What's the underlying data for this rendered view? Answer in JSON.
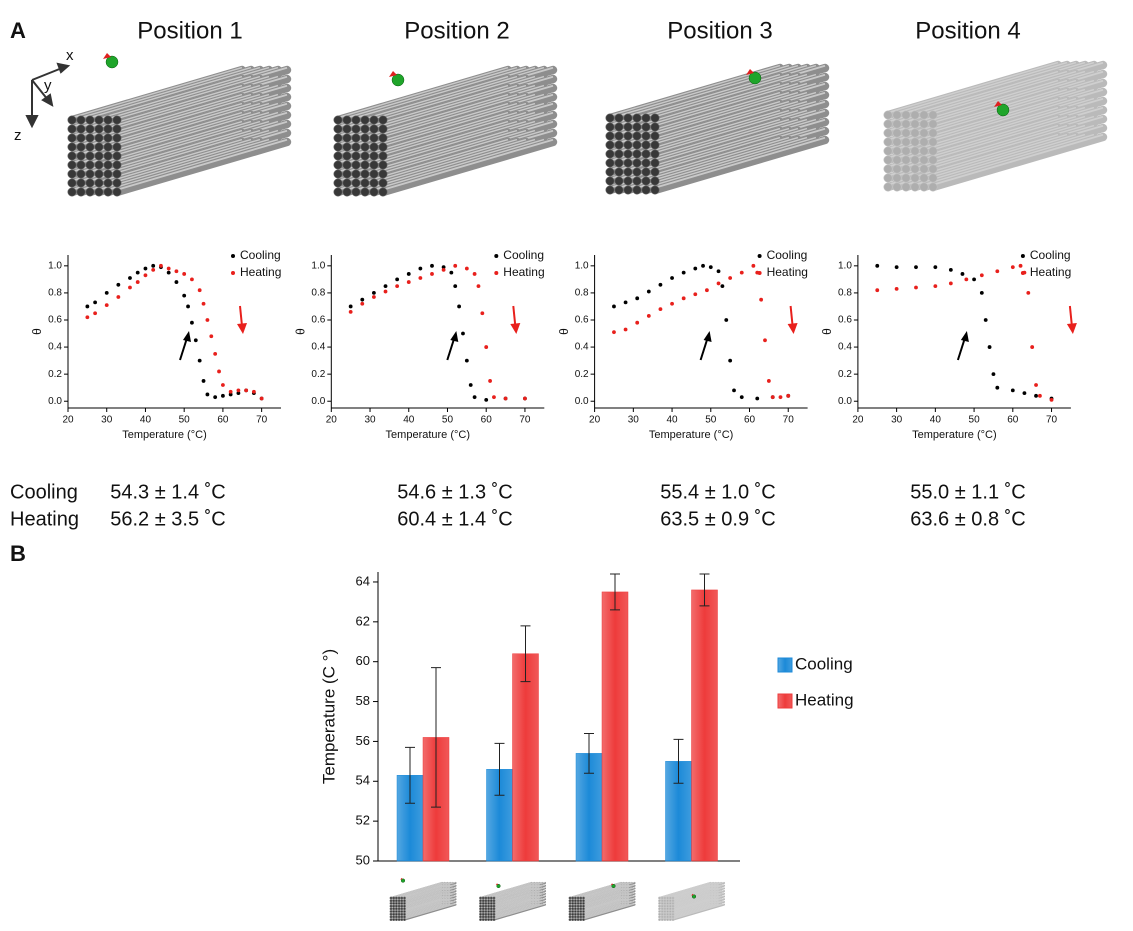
{
  "figure": {
    "panel_a": "A",
    "panel_b": "B",
    "axes": {
      "x": "x",
      "y": "y",
      "z": "z"
    },
    "positions": [
      "Position 1",
      "Position 2",
      "Position 3",
      "Position 4"
    ],
    "summary": {
      "labels": [
        "Cooling",
        "Heating"
      ],
      "values": [
        [
          "54.3 ± 1.4 ˚C",
          "56.2 ± 3.5 ˚C"
        ],
        [
          "54.6 ± 1.3 ˚C",
          "60.4 ± 1.4 ˚C"
        ],
        [
          "55.4 ± 1.0 ˚C",
          "63.5 ± 0.9 ˚C"
        ],
        [
          "55.0 ± 1.1 ˚C",
          "63.6 ± 0.8 ˚C"
        ]
      ]
    }
  },
  "chart_data": [
    {
      "type": "scatter",
      "xlabel": "Temperature (°C)",
      "ylabel": "θ",
      "xlim": [
        20,
        75
      ],
      "ylim": [
        -0.05,
        1.08
      ],
      "xticks": [
        20,
        30,
        40,
        50,
        60,
        70
      ],
      "yticks": [
        {
          "value": 0,
          "label": "0.0"
        },
        0.2,
        0.4,
        0.6,
        0.8,
        {
          "value": 1,
          "label": "1.0"
        }
      ],
      "legend": "upper right",
      "series": [
        {
          "name": "Cooling",
          "color": "#000000",
          "x": [
            25,
            27,
            30,
            33,
            36,
            38,
            40,
            42,
            44,
            46,
            48,
            50,
            51,
            52,
            53,
            54,
            55,
            56,
            58,
            60,
            62,
            64,
            66,
            68,
            70
          ],
          "values": [
            0.7,
            0.73,
            0.8,
            0.86,
            0.91,
            0.95,
            0.98,
            1.0,
            0.99,
            0.95,
            0.88,
            0.78,
            0.7,
            0.58,
            0.45,
            0.3,
            0.15,
            0.05,
            0.03,
            0.04,
            0.05,
            0.06,
            0.08,
            0.06,
            0.02
          ]
        },
        {
          "name": "Heating",
          "color": "#e8201c",
          "x": [
            25,
            27,
            30,
            33,
            36,
            38,
            40,
            42,
            44,
            46,
            48,
            50,
            52,
            54,
            55,
            56,
            57,
            58,
            59,
            60,
            62,
            64,
            66,
            68,
            70
          ],
          "values": [
            0.62,
            0.65,
            0.71,
            0.77,
            0.84,
            0.88,
            0.93,
            0.97,
            1.0,
            0.98,
            0.96,
            0.94,
            0.9,
            0.82,
            0.72,
            0.6,
            0.48,
            0.35,
            0.22,
            0.12,
            0.07,
            0.08,
            0.08,
            0.07,
            0.02
          ]
        }
      ]
    },
    {
      "type": "scatter",
      "xlabel": "Temperature (°C)",
      "ylabel": "θ",
      "xlim": [
        20,
        75
      ],
      "ylim": [
        -0.05,
        1.08
      ],
      "xticks": [
        20,
        30,
        40,
        50,
        60,
        70
      ],
      "yticks": [
        {
          "value": 0,
          "label": "0.0"
        },
        0.2,
        0.4,
        0.6,
        0.8,
        {
          "value": 1,
          "label": "1.0"
        }
      ],
      "legend": "upper right",
      "series": [
        {
          "name": "Cooling",
          "color": "#000000",
          "x": [
            25,
            28,
            31,
            34,
            37,
            40,
            43,
            46,
            49,
            51,
            52,
            53,
            54,
            55,
            56,
            57,
            60,
            65,
            70
          ],
          "values": [
            0.7,
            0.75,
            0.8,
            0.85,
            0.9,
            0.94,
            0.98,
            1.0,
            0.99,
            0.95,
            0.85,
            0.7,
            0.5,
            0.3,
            0.12,
            0.03,
            0.01,
            0.02,
            0.02
          ]
        },
        {
          "name": "Heating",
          "color": "#e8201c",
          "x": [
            25,
            28,
            31,
            34,
            37,
            40,
            43,
            46,
            49,
            52,
            55,
            57,
            58,
            59,
            60,
            61,
            62,
            65,
            70
          ],
          "values": [
            0.66,
            0.72,
            0.77,
            0.81,
            0.85,
            0.88,
            0.91,
            0.94,
            0.97,
            1.0,
            0.98,
            0.94,
            0.85,
            0.65,
            0.4,
            0.15,
            0.03,
            0.02,
            0.02
          ]
        }
      ]
    },
    {
      "type": "scatter",
      "xlabel": "Temperature (°C)",
      "ylabel": "θ",
      "xlim": [
        20,
        75
      ],
      "ylim": [
        -0.05,
        1.08
      ],
      "xticks": [
        20,
        30,
        40,
        50,
        60,
        70
      ],
      "yticks": [
        {
          "value": 0,
          "label": "0.0"
        },
        0.2,
        0.4,
        0.6,
        0.8,
        {
          "value": 1,
          "label": "1.0"
        }
      ],
      "legend": "upper right",
      "series": [
        {
          "name": "Cooling",
          "color": "#000000",
          "x": [
            25,
            28,
            31,
            34,
            37,
            40,
            43,
            46,
            48,
            50,
            52,
            53,
            54,
            55,
            56,
            58,
            62,
            66,
            70
          ],
          "values": [
            0.7,
            0.73,
            0.76,
            0.81,
            0.86,
            0.91,
            0.95,
            0.98,
            1.0,
            0.99,
            0.96,
            0.85,
            0.6,
            0.3,
            0.08,
            0.03,
            0.02,
            0.03,
            0.04
          ]
        },
        {
          "name": "Heating",
          "color": "#e8201c",
          "x": [
            25,
            28,
            31,
            34,
            37,
            40,
            43,
            46,
            49,
            52,
            55,
            58,
            61,
            62,
            63,
            64,
            65,
            66,
            68,
            70
          ],
          "values": [
            0.51,
            0.53,
            0.58,
            0.63,
            0.68,
            0.72,
            0.76,
            0.79,
            0.82,
            0.87,
            0.91,
            0.95,
            1.0,
            0.95,
            0.75,
            0.45,
            0.15,
            0.03,
            0.03,
            0.04
          ]
        }
      ]
    },
    {
      "type": "scatter",
      "xlabel": "Temperature (°C)",
      "ylabel": "θ",
      "xlim": [
        20,
        75
      ],
      "ylim": [
        -0.05,
        1.08
      ],
      "xticks": [
        20,
        30,
        40,
        50,
        60,
        70
      ],
      "yticks": [
        {
          "value": 0,
          "label": "0.0"
        },
        0.2,
        0.4,
        0.6,
        0.8,
        {
          "value": 1,
          "label": "1.0"
        }
      ],
      "legend": "upper right",
      "series": [
        {
          "name": "Cooling",
          "color": "#000000",
          "x": [
            25,
            30,
            35,
            40,
            44,
            47,
            50,
            52,
            53,
            54,
            55,
            56,
            60,
            63,
            66,
            70
          ],
          "values": [
            1.0,
            0.99,
            0.99,
            0.99,
            0.97,
            0.94,
            0.9,
            0.8,
            0.6,
            0.4,
            0.2,
            0.1,
            0.08,
            0.06,
            0.04,
            0.02
          ]
        },
        {
          "name": "Heating",
          "color": "#e8201c",
          "x": [
            25,
            30,
            35,
            40,
            44,
            48,
            52,
            56,
            60,
            62,
            63,
            64,
            65,
            66,
            67,
            70
          ],
          "values": [
            0.82,
            0.83,
            0.84,
            0.85,
            0.87,
            0.9,
            0.93,
            0.96,
            0.99,
            1.0,
            0.95,
            0.8,
            0.4,
            0.12,
            0.04,
            0.01
          ]
        }
      ]
    },
    {
      "type": "bar",
      "ylabel": "Temperature (C °)",
      "categories": [
        null,
        null,
        null,
        null
      ],
      "ylim": [
        50,
        64.5
      ],
      "yticks": [
        50,
        52,
        54,
        56,
        58,
        60,
        62,
        64
      ],
      "legend": "right",
      "series": [
        {
          "name": "Cooling",
          "color": "#1c8ad8",
          "values": [
            54.3,
            54.6,
            55.4,
            55.0
          ],
          "errors": [
            1.4,
            1.3,
            1.0,
            1.1
          ]
        },
        {
          "name": "Heating",
          "color": "#ee3b3b",
          "values": [
            56.2,
            60.4,
            63.5,
            63.6
          ],
          "errors": [
            3.5,
            1.4,
            0.9,
            0.8
          ]
        }
      ]
    }
  ]
}
